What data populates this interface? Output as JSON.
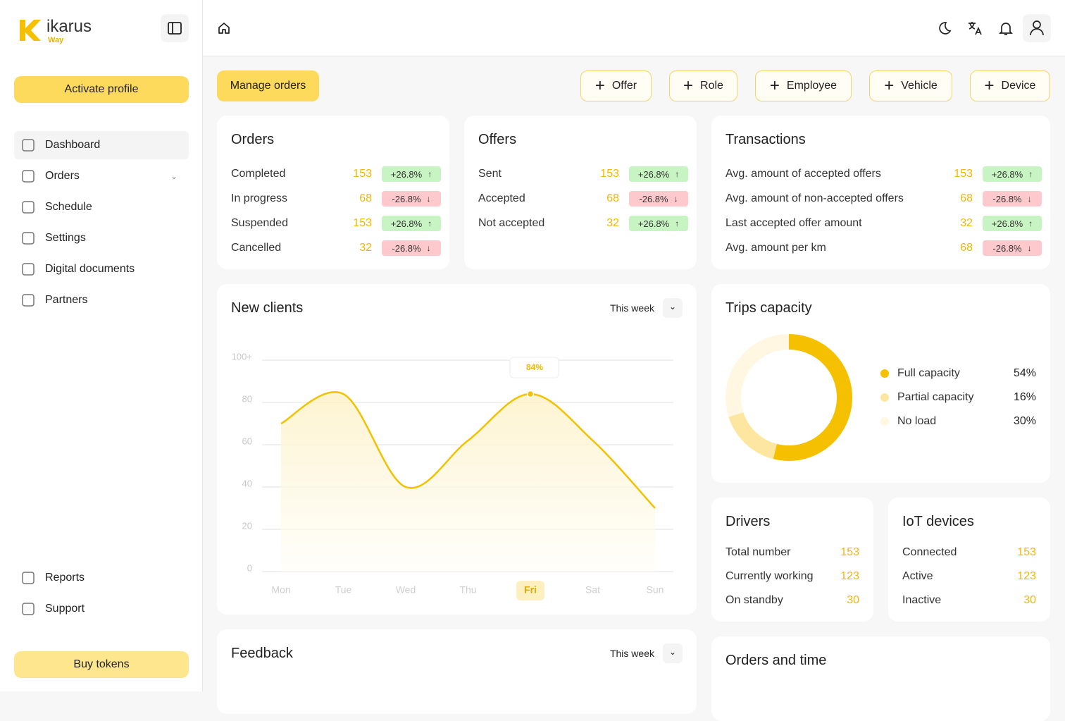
{
  "sidebar": {
    "brand": "ikarus",
    "brand_sub": "Way",
    "activate": "Activate profile",
    "nav": [
      "Dashboard",
      "Orders",
      "Schedule",
      "Settings",
      "Digital documents",
      "Partners"
    ],
    "nav_bottom": [
      "Reports",
      "Support"
    ],
    "buy": "Buy tokens"
  },
  "actions": {
    "primary": "Manage orders",
    "add": [
      "Offer",
      "Role",
      "Employee",
      "Vehicle",
      "Device"
    ]
  },
  "stats": [
    {
      "title": "Orders",
      "rows": [
        {
          "label": "Completed",
          "value": 153,
          "change": "+26.8%"
        },
        {
          "label": "In progress",
          "value": 68,
          "change": "-26.8%"
        },
        {
          "label": "Suspended",
          "value": 153,
          "change": "+26.8%"
        },
        {
          "label": "Cancelled",
          "value": 32,
          "change": "-26.8%"
        }
      ]
    },
    {
      "title": "Offers",
      "rows": [
        {
          "label": "Sent",
          "value": 153,
          "change": "+26.8%"
        },
        {
          "label": "Accepted",
          "value": 68,
          "change": "-26.8%"
        },
        {
          "label": "Not accepted",
          "value": 32,
          "change": "+26.8%"
        }
      ]
    },
    {
      "title": "Transactions",
      "rows": [
        {
          "label": "Avg. amount of accepted offers",
          "value": 153,
          "change": "+26.8%"
        },
        {
          "label": "Avg. amount of non-accepted offers",
          "value": 68,
          "change": "-26.8%"
        },
        {
          "label": "Last accepted offer amount",
          "value": 32,
          "change": "+26.8%"
        },
        {
          "label": "Avg. amount per km",
          "value": 68,
          "change": "-26.8%"
        }
      ]
    }
  ],
  "chart_data": [
    {
      "type": "line",
      "title": "New clients",
      "period": "This week",
      "categories": [
        "Mon",
        "Tue",
        "Wed",
        "Thu",
        "Fri",
        "Sat",
        "Sun"
      ],
      "values": [
        70,
        84,
        40,
        62,
        84,
        62,
        30
      ],
      "value_labels": [
        null,
        null,
        null,
        null,
        "84%",
        null,
        null
      ],
      "color": "#f2c200",
      "ylim": [
        0,
        100
      ],
      "yticks": [
        0,
        20,
        40,
        60,
        80,
        {
          "value": 100,
          "label": "100+"
        }
      ],
      "grid": true
    },
    {
      "type": "pie",
      "title": "Trips capacity",
      "categories": [
        "Full capacity",
        "Partial capacity",
        "No load"
      ],
      "values": [
        54,
        16,
        30
      ],
      "value_labels": [
        "54%",
        "16%",
        "30%"
      ],
      "colors": [
        "#f5c000",
        "#fde7a0",
        "#fff7e2"
      ]
    }
  ],
  "small": [
    {
      "title": "Drivers",
      "rows": [
        {
          "label": "Total number",
          "value": 153
        },
        {
          "label": "Currently working",
          "value": 123
        },
        {
          "label": "On standby",
          "value": 30
        }
      ]
    },
    {
      "title": "IoT devices",
      "rows": [
        {
          "label": "Connected",
          "value": 153
        },
        {
          "label": "Active",
          "value": 123
        },
        {
          "label": "Inactive",
          "value": 30
        }
      ]
    }
  ],
  "feedback": {
    "title": "Feedback",
    "period": "This week"
  },
  "orders_time": {
    "title": "Orders and time"
  }
}
